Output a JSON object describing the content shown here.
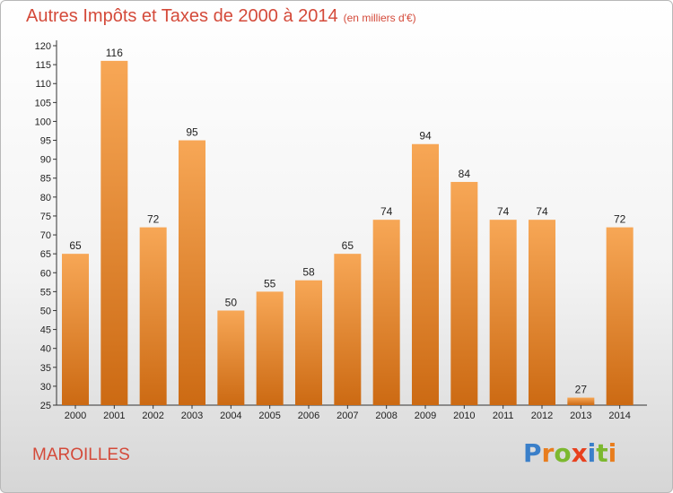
{
  "title": "Autres Impôts et Taxes de 2000 à 2014",
  "unit_note": "(en milliers d'€)",
  "commune": "MAROILLES",
  "logo": {
    "letters": [
      "P",
      "r",
      "o",
      "x",
      "i",
      "t",
      "i"
    ],
    "colors": [
      "#3a7fc9",
      "#e87d1e",
      "#7cb82f",
      "#e8401e",
      "#3a7fc9",
      "#7cb82f",
      "#e87d1e"
    ]
  },
  "colors": {
    "bar_light": "#f7a756",
    "bar_dark": "#cc6a13",
    "title": "#d44a3a"
  },
  "chart_data": {
    "type": "bar",
    "title": "Autres Impôts et Taxes de 2000 à 2014",
    "categories": [
      "2000",
      "2001",
      "2002",
      "2003",
      "2004",
      "2005",
      "2006",
      "2007",
      "2008",
      "2009",
      "2010",
      "2011",
      "2012",
      "2013",
      "2014"
    ],
    "values": [
      65,
      116,
      72,
      95,
      50,
      55,
      58,
      65,
      74,
      94,
      84,
      74,
      74,
      27,
      72
    ],
    "ylim": [
      25,
      120
    ],
    "yticks": [
      25,
      30,
      35,
      40,
      45,
      50,
      55,
      60,
      65,
      70,
      75,
      80,
      85,
      90,
      95,
      100,
      105,
      110,
      115,
      120
    ],
    "grid": false,
    "xlabel": "",
    "ylabel": ""
  }
}
